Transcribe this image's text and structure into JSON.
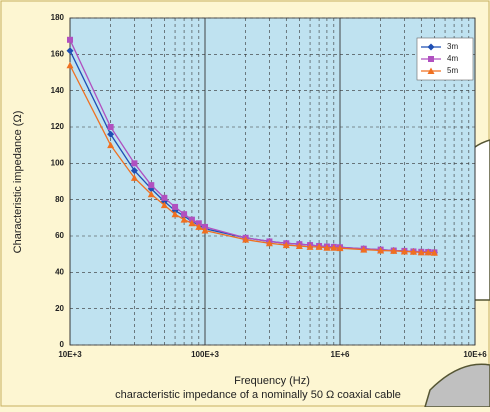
{
  "chart_data": {
    "type": "line",
    "x_label": "Frequency (Hz)",
    "y_label": "Characteristic impedance (Ω)",
    "caption": "characteristic impedance of a nominally 50 Ω coaxial cable",
    "log_x": true,
    "grid": true,
    "legend": "top-right",
    "x": [
      10000,
      20000,
      30000,
      40000,
      50000,
      60000,
      70000,
      80000,
      90000,
      100000,
      200000,
      300000,
      400000,
      500000,
      600000,
      700000,
      800000,
      900000,
      1000000,
      1500000,
      2000000,
      2500000,
      3000000,
      3500000,
      4000000,
      4500000,
      5000000
    ],
    "series": [
      {
        "name": "3m",
        "color": "#1f4fb4",
        "marker": "diamond",
        "values": [
          162,
          116,
          96,
          86,
          79,
          74,
          71,
          68,
          66,
          64,
          59,
          57,
          56,
          55.5,
          55,
          54.5,
          54.2,
          54,
          53.8,
          53,
          52.5,
          52,
          51.8,
          51.5,
          51.3,
          51.2,
          51
        ]
      },
      {
        "name": "4m",
        "color": "#b050c0",
        "marker": "square",
        "values": [
          168,
          120,
          100,
          88,
          81,
          76,
          72,
          69,
          67,
          65,
          59,
          57,
          56,
          55.5,
          55,
          54.5,
          54.2,
          54,
          53.8,
          53,
          52.5,
          52,
          51.8,
          51.5,
          51.3,
          51.2,
          51
        ]
      },
      {
        "name": "5m",
        "color": "#f07020",
        "marker": "triangle",
        "values": [
          154,
          110,
          92,
          83,
          77,
          72,
          69,
          67,
          65,
          63,
          58,
          56,
          55,
          54.5,
          54,
          54,
          53.5,
          53.5,
          53.3,
          52.5,
          52,
          51.8,
          51.5,
          51.3,
          51,
          51,
          50.8
        ]
      }
    ],
    "xlim": [
      10000,
      10000000
    ],
    "xticks": [
      {
        "value": 10000,
        "label": "10E+3"
      },
      {
        "value": 100000,
        "label": "100E+3"
      },
      {
        "value": 1000000,
        "label": "1E+6"
      },
      {
        "value": 10000000,
        "label": "10E+6"
      }
    ],
    "ylim": [
      0,
      180
    ],
    "yticks": [
      0,
      20,
      40,
      60,
      80,
      100,
      120,
      140,
      160,
      180
    ]
  }
}
